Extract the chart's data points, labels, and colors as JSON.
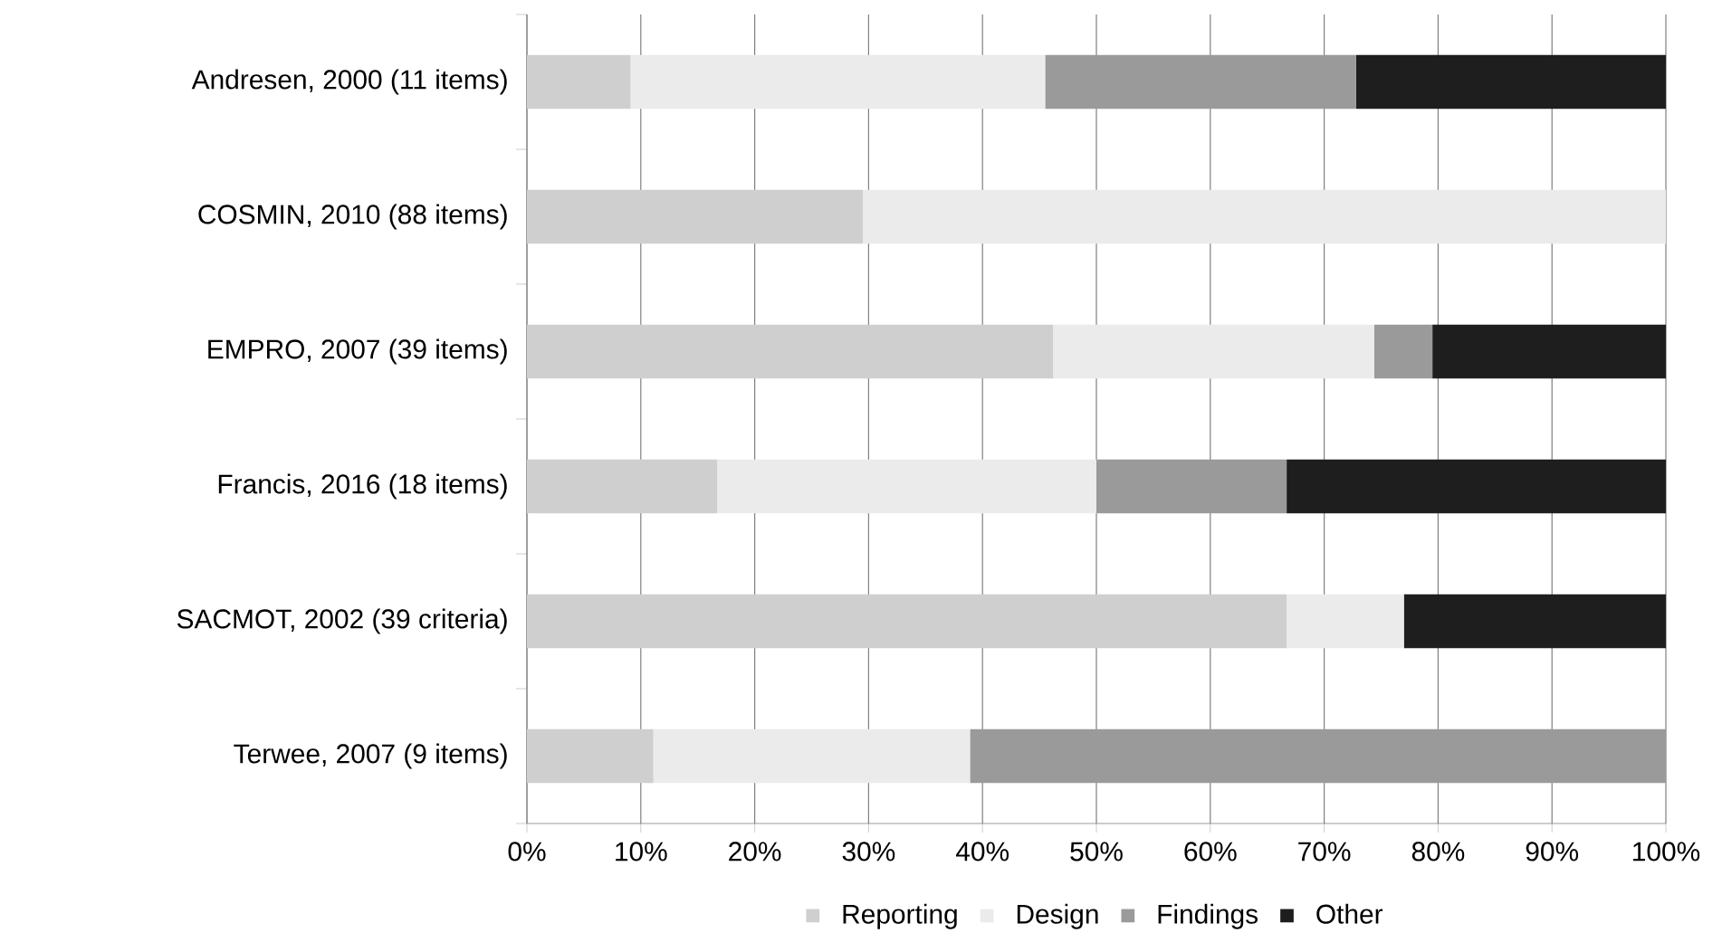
{
  "chart_data": {
    "type": "bar",
    "orientation": "horizontal",
    "stacked": true,
    "categories": [
      "Andresen, 2000 (11 items)",
      "COSMIN, 2010 (88 items)",
      "EMPRO, 2007 (39 items)",
      "Francis, 2016 (18 items)",
      "SACMOT, 2002 (39 criteria)",
      "Terwee, 2007 (9 items)"
    ],
    "series": [
      {
        "name": "Reporting",
        "color": "#cfcfcf",
        "values": [
          9.1,
          29.5,
          46.2,
          16.7,
          66.7,
          11.1
        ]
      },
      {
        "name": "Design",
        "color": "#ebebeb",
        "values": [
          36.4,
          70.5,
          28.2,
          33.3,
          10.3,
          27.8
        ]
      },
      {
        "name": "Findings",
        "color": "#9a9a9a",
        "values": [
          27.3,
          0,
          5.1,
          16.7,
          0,
          61.1
        ]
      },
      {
        "name": "Other",
        "color": "#1e1e1e",
        "values": [
          27.2,
          0,
          20.5,
          33.3,
          23.0,
          0
        ]
      }
    ],
    "xlim": [
      0,
      100
    ],
    "xticks": [
      {
        "value": 0,
        "label": "0%"
      },
      {
        "value": 10,
        "label": "10%"
      },
      {
        "value": 20,
        "label": "20%"
      },
      {
        "value": 30,
        "label": "30%"
      },
      {
        "value": 40,
        "label": "40%"
      },
      {
        "value": 50,
        "label": "50%"
      },
      {
        "value": 60,
        "label": "60%"
      },
      {
        "value": 70,
        "label": "70%"
      },
      {
        "value": 80,
        "label": "80%"
      },
      {
        "value": 90,
        "label": "90%"
      },
      {
        "value": 100,
        "label": "100%"
      }
    ],
    "grid": "x",
    "legend": "bottom"
  }
}
